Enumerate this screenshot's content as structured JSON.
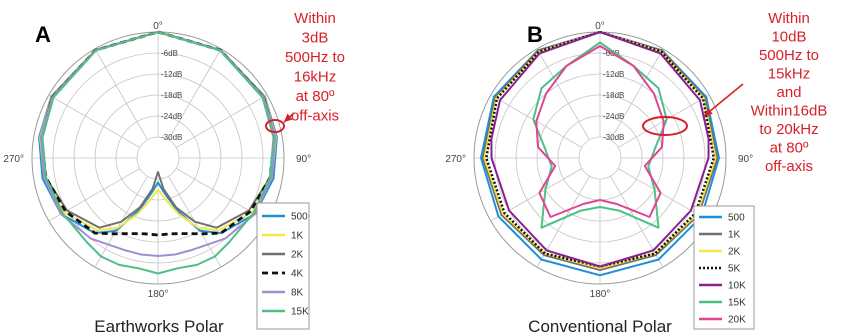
{
  "chart_data": [
    {
      "type": "polar",
      "panel": "A",
      "title": "Earthworks Polar",
      "angle_labels": [
        "0°",
        "90°",
        "180°",
        "270°"
      ],
      "ring_labels": [
        "-6dB",
        "-12dB",
        "-18dB",
        "-24dB",
        "-30dB"
      ],
      "annotation": [
        "Within",
        "3dB",
        "500Hz to",
        "16kHz",
        "at 80º",
        "off-axis"
      ],
      "legend": [
        "500",
        "1K",
        "2K",
        "4K",
        "8K",
        "15K"
      ],
      "series": [
        {
          "name": "500",
          "color": "#1f8fd6",
          "dash": "",
          "width": 2,
          "angles": [
            0,
            30,
            60,
            80,
            100,
            120,
            140,
            150,
            160,
            170,
            180
          ],
          "values": [
            0,
            -0.3,
            -0.8,
            -1.5,
            -2.5,
            -4,
            -8,
            -12,
            -20,
            -26,
            -29
          ]
        },
        {
          "name": "1K",
          "color": "#f5e74a",
          "dash": "",
          "width": 2,
          "angles": [
            0,
            30,
            60,
            80,
            100,
            120,
            140,
            150,
            160,
            170,
            180
          ],
          "values": [
            0,
            -0.3,
            -0.9,
            -1.8,
            -3,
            -5,
            -9,
            -13,
            -19,
            -24,
            -27
          ]
        },
        {
          "name": "2K",
          "color": "#707070",
          "dash": "",
          "width": 2,
          "angles": [
            0,
            30,
            60,
            80,
            100,
            120,
            140,
            150,
            160,
            170,
            180
          ],
          "values": [
            0,
            -0.4,
            -1,
            -2,
            -3.5,
            -6,
            -10,
            -15,
            -21,
            -27,
            -32
          ]
        },
        {
          "name": "4K",
          "color": "#111111",
          "dash": "6,4",
          "width": 2.8,
          "angles": [
            0,
            30,
            60,
            80,
            100,
            120,
            140,
            150,
            160,
            170,
            180
          ],
          "values": [
            0,
            -0.4,
            -1.2,
            -2.2,
            -3.5,
            -5.5,
            -8,
            -11,
            -13,
            -14,
            -14
          ]
        },
        {
          "name": "8K",
          "color": "#a58bd0",
          "dash": "",
          "width": 2,
          "angles": [
            0,
            30,
            60,
            80,
            100,
            120,
            140,
            150,
            160,
            170,
            180
          ],
          "values": [
            0,
            -0.4,
            -1.2,
            -2,
            -3,
            -4,
            -6,
            -7.5,
            -8,
            -8,
            -8
          ]
        },
        {
          "name": "15K",
          "color": "#4fbf85",
          "dash": "",
          "width": 2,
          "angles": [
            0,
            30,
            60,
            80,
            100,
            120,
            140,
            150,
            160,
            170,
            180
          ],
          "values": [
            0,
            -0.5,
            -1.5,
            -2.5,
            -3.5,
            -4.5,
            -4.5,
            -3.5,
            -3.5,
            -4,
            -3
          ]
        }
      ]
    },
    {
      "type": "polar",
      "panel": "B",
      "title": "Conventional Polar",
      "angle_labels": [
        "0°",
        "90°",
        "180°",
        "270°"
      ],
      "ring_labels": [
        "-6dB",
        "-12dB",
        "-18dB",
        "-24dB",
        "-30dB"
      ],
      "annotation": [
        "Within",
        "10dB",
        "500Hz to",
        "15kHz",
        "and",
        "Within16dB",
        "to 20kHz",
        "at 80º",
        "off-axis"
      ],
      "legend": [
        "500",
        "1K",
        "2K",
        "5K",
        "10K",
        "15K",
        "20K"
      ],
      "series": [
        {
          "name": "500",
          "color": "#1f8fd6",
          "dash": "",
          "width": 2,
          "angles": [
            0,
            30,
            60,
            90,
            120,
            150,
            180
          ],
          "values": [
            0,
            -0.5,
            -1,
            -2,
            -2.5,
            -2.5,
            -2.5
          ]
        },
        {
          "name": "1K",
          "color": "#707070",
          "dash": "",
          "width": 2,
          "angles": [
            0,
            30,
            60,
            90,
            120,
            150,
            180
          ],
          "values": [
            0,
            -0.5,
            -1.5,
            -2.5,
            -3.5,
            -4,
            -4
          ]
        },
        {
          "name": "2K",
          "color": "#f5e74a",
          "dash": "",
          "width": 2,
          "angles": [
            0,
            30,
            60,
            90,
            120,
            150,
            180
          ],
          "values": [
            0,
            -1,
            -1.8,
            -3,
            -4,
            -4.5,
            -4.5
          ]
        },
        {
          "name": "5K",
          "color": "#111111",
          "dash": "2,2",
          "width": 2.5,
          "angles": [
            0,
            30,
            60,
            90,
            120,
            150,
            180
          ],
          "values": [
            0,
            -1,
            -2,
            -3.5,
            -4.5,
            -4.5,
            -5
          ]
        },
        {
          "name": "10K",
          "color": "#8b1f8f",
          "dash": "",
          "width": 2,
          "angles": [
            0,
            30,
            60,
            80,
            90,
            120,
            150,
            180
          ],
          "values": [
            0,
            -1.5,
            -3,
            -4.5,
            -5,
            -6,
            -5.5,
            -5
          ]
        },
        {
          "name": "15K",
          "color": "#4fbf85",
          "dash": "",
          "width": 2,
          "angles": [
            0,
            20,
            40,
            60,
            80,
            100,
            120,
            140,
            160,
            180
          ],
          "values": [
            -3,
            -8,
            -10,
            -14,
            -20,
            -22,
            -18,
            -10,
            -20,
            -22
          ]
        },
        {
          "name": "20K",
          "color": "#e04494",
          "dash": "",
          "width": 2,
          "angles": [
            0,
            20,
            40,
            60,
            80,
            100,
            120,
            140,
            160,
            180
          ],
          "values": [
            -4,
            -8,
            -12,
            -15,
            -18,
            -23,
            -16,
            -14,
            -22,
            -24
          ]
        }
      ]
    }
  ]
}
